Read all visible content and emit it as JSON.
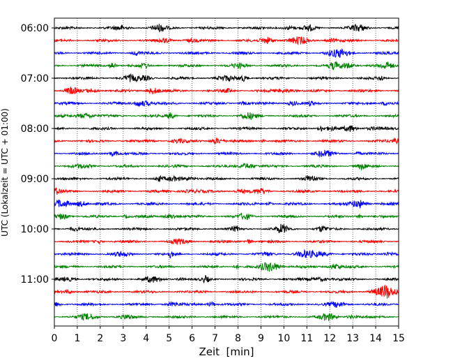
{
  "chart_data": {
    "type": "line",
    "title": "",
    "xlabel": "Zeit  [min]",
    "ylabel": "UTC (Lokalzeit = UTC + 01:00)",
    "xlim": [
      0,
      15
    ],
    "x_ticks": [
      0,
      1,
      2,
      3,
      4,
      5,
      6,
      7,
      8,
      9,
      10,
      11,
      12,
      13,
      14,
      15
    ],
    "x_tick_labels": [
      "0",
      "1",
      "2",
      "3",
      "4",
      "5",
      "6",
      "7",
      "8",
      "9",
      "10",
      "11",
      "12",
      "13",
      "14",
      "15"
    ],
    "y_tick_labels": [
      "06:00",
      "07:00",
      "08:00",
      "09:00",
      "10:00",
      "11:00"
    ],
    "minutes_per_row": 15,
    "grid": "vertical dotted at each minute",
    "line_colors": [
      "#000000",
      "#ff0000",
      "#0000ff",
      "#008000"
    ],
    "series": [
      {
        "start": "06:00"
      },
      {
        "start": "06:15"
      },
      {
        "start": "06:30"
      },
      {
        "start": "06:45"
      },
      {
        "start": "07:00"
      },
      {
        "start": "07:15"
      },
      {
        "start": "07:30"
      },
      {
        "start": "07:45"
      },
      {
        "start": "08:00"
      },
      {
        "start": "08:15"
      },
      {
        "start": "08:30"
      },
      {
        "start": "08:45"
      },
      {
        "start": "09:00"
      },
      {
        "start": "09:15"
      },
      {
        "start": "09:30"
      },
      {
        "start": "09:45"
      },
      {
        "start": "10:00"
      },
      {
        "start": "10:15"
      },
      {
        "start": "10:30"
      },
      {
        "start": "10:45"
      },
      {
        "start": "11:00"
      },
      {
        "start": "11:15"
      },
      {
        "start": "11:30"
      },
      {
        "start": "11:45"
      }
    ]
  }
}
